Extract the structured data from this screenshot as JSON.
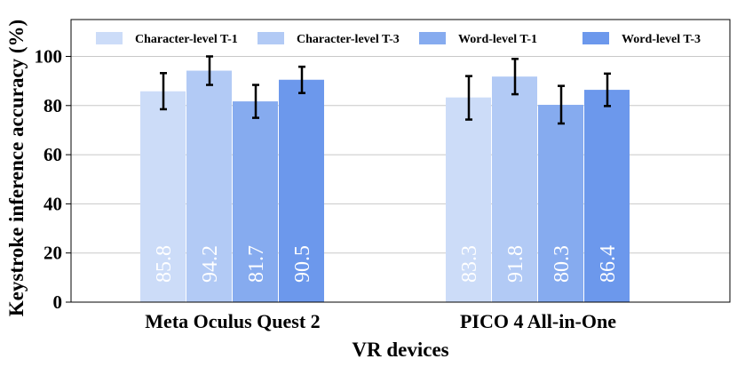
{
  "chart_data": {
    "type": "bar",
    "categories": [
      "Meta Oculus Quest 2",
      "PICO 4 All-in-One"
    ],
    "xlabel": "VR devices",
    "ylabel": "Keystroke inference accuracy (%)",
    "ylim": [
      0,
      115
    ],
    "yticks": [
      "0",
      "20",
      "40",
      "60",
      "80",
      "100"
    ],
    "grid": "horizontal",
    "legend_position": "top",
    "series": [
      {
        "name": "Character-level T-1",
        "values": [
          85.8,
          83.3
        ],
        "labels": [
          "85.8",
          "83.3"
        ],
        "err_low": [
          78.5,
          74.3
        ],
        "err_high": [
          93.2,
          92.0
        ],
        "color": "#ccdcf8"
      },
      {
        "name": "Character-level T-3",
        "values": [
          94.2,
          91.8
        ],
        "labels": [
          "94.2",
          "91.8"
        ],
        "err_low": [
          88.4,
          84.6
        ],
        "err_high": [
          100.0,
          99.0
        ],
        "color": "#b2caf5"
      },
      {
        "name": "Word-level T-1",
        "values": [
          81.7,
          80.3
        ],
        "labels": [
          "81.7",
          "80.3"
        ],
        "err_low": [
          75.0,
          72.7
        ],
        "err_high": [
          88.4,
          88.0
        ],
        "color": "#86abef"
      },
      {
        "name": "Word-level T-3",
        "values": [
          90.5,
          86.4
        ],
        "labels": [
          "90.5",
          "86.4"
        ],
        "err_low": [
          85.1,
          79.8
        ],
        "err_high": [
          95.8,
          93.0
        ],
        "color": "#6c98ec"
      }
    ]
  }
}
